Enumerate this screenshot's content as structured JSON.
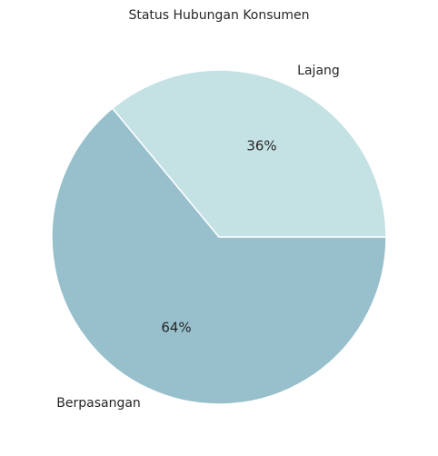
{
  "chart_data": {
    "type": "pie",
    "title": "Status Hubungan Konsumen",
    "categories": [
      "Lajang",
      "Berpasangan"
    ],
    "values": [
      36,
      64
    ],
    "value_labels": [
      "36%",
      "64%"
    ],
    "colors": [
      "#c4e2e4",
      "#97c0cc"
    ],
    "start_angle_deg": 0,
    "direction": "counterclockwise",
    "legend": "none"
  }
}
